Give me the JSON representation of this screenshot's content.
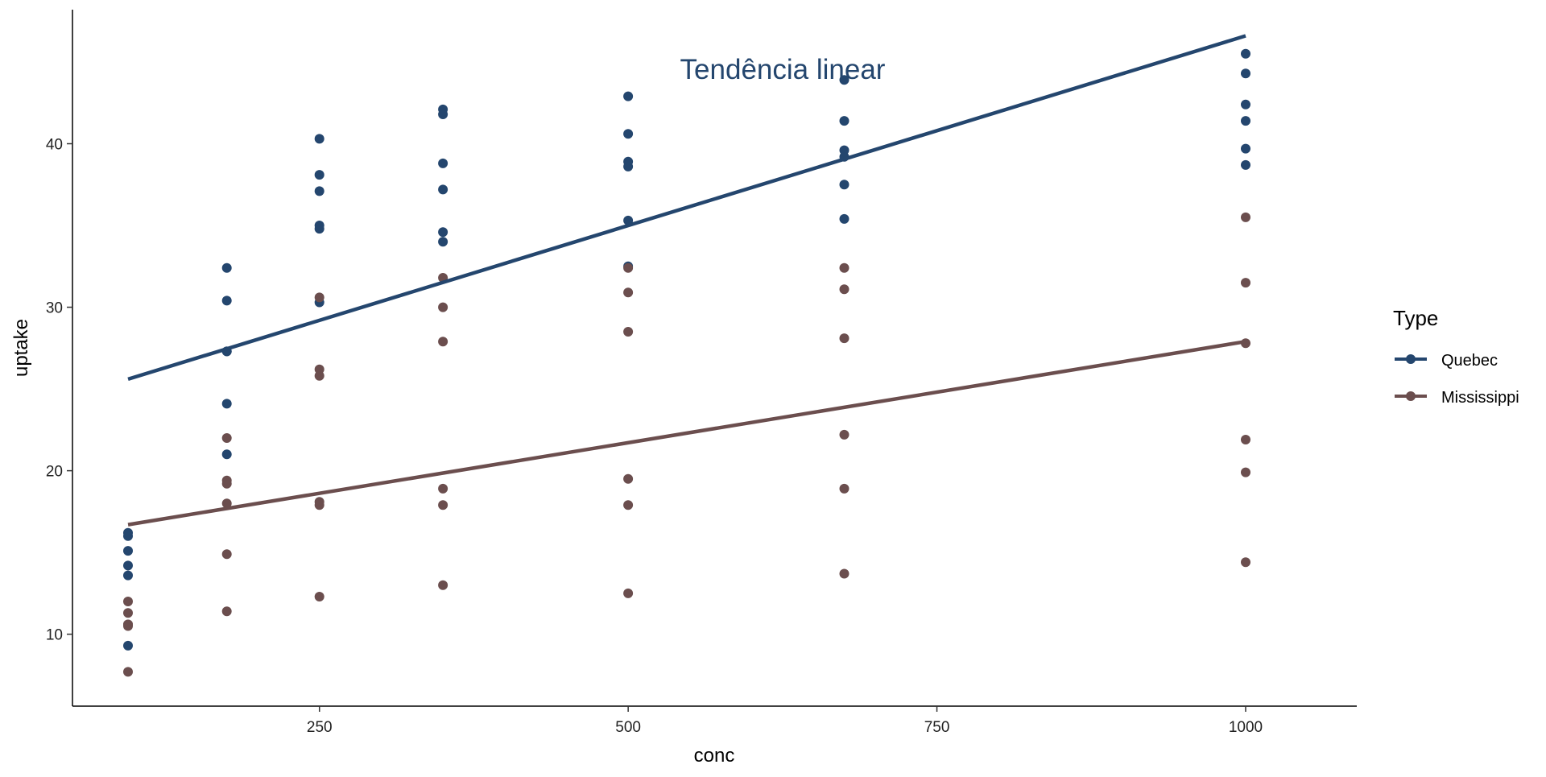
{
  "chart_data": {
    "type": "scatter",
    "annotation": "Tendência linear",
    "xlabel": "conc",
    "ylabel": "uptake",
    "xlim": [
      50,
      1090
    ],
    "ylim": [
      5.6,
      48.2
    ],
    "x_ticks": [
      250,
      500,
      750,
      1000
    ],
    "y_ticks": [
      10,
      20,
      30,
      40
    ],
    "grid": false,
    "legend": {
      "title": "Type",
      "position": "right"
    },
    "colors": {
      "Quebec": "#24466e",
      "Mississippi": "#6b4e4e"
    },
    "series": [
      {
        "name": "Quebec",
        "points": [
          [
            95,
            16.0
          ],
          [
            95,
            13.6
          ],
          [
            95,
            16.2
          ],
          [
            95,
            14.2
          ],
          [
            95,
            9.3
          ],
          [
            95,
            15.1
          ],
          [
            175,
            30.4
          ],
          [
            175,
            27.3
          ],
          [
            175,
            32.4
          ],
          [
            175,
            24.1
          ],
          [
            175,
            27.3
          ],
          [
            175,
            21.0
          ],
          [
            250,
            34.8
          ],
          [
            250,
            37.1
          ],
          [
            250,
            40.3
          ],
          [
            250,
            30.3
          ],
          [
            250,
            35.0
          ],
          [
            250,
            38.1
          ],
          [
            350,
            37.2
          ],
          [
            350,
            41.8
          ],
          [
            350,
            42.1
          ],
          [
            350,
            34.6
          ],
          [
            350,
            38.8
          ],
          [
            350,
            34.0
          ],
          [
            500,
            35.3
          ],
          [
            500,
            40.6
          ],
          [
            500,
            42.9
          ],
          [
            500,
            32.5
          ],
          [
            500,
            38.9
          ],
          [
            500,
            38.6
          ],
          [
            675,
            39.2
          ],
          [
            675,
            41.4
          ],
          [
            675,
            43.9
          ],
          [
            675,
            35.4
          ],
          [
            675,
            39.6
          ],
          [
            675,
            37.5
          ],
          [
            1000,
            39.7
          ],
          [
            1000,
            44.3
          ],
          [
            1000,
            45.5
          ],
          [
            1000,
            38.7
          ],
          [
            1000,
            41.4
          ],
          [
            1000,
            42.4
          ]
        ],
        "trend": {
          "x": [
            95,
            1000
          ],
          "y": [
            25.6,
            46.6
          ]
        }
      },
      {
        "name": "Mississippi",
        "points": [
          [
            95,
            10.6
          ],
          [
            95,
            12.0
          ],
          [
            95,
            11.3
          ],
          [
            95,
            10.5
          ],
          [
            95,
            7.7
          ],
          [
            95,
            10.6
          ],
          [
            175,
            19.2
          ],
          [
            175,
            22.0
          ],
          [
            175,
            19.4
          ],
          [
            175,
            14.9
          ],
          [
            175,
            11.4
          ],
          [
            175,
            18.0
          ],
          [
            250,
            26.2
          ],
          [
            250,
            30.6
          ],
          [
            250,
            25.8
          ],
          [
            250,
            18.1
          ],
          [
            250,
            12.3
          ],
          [
            250,
            17.9
          ],
          [
            350,
            30.0
          ],
          [
            350,
            31.8
          ],
          [
            350,
            27.9
          ],
          [
            350,
            18.9
          ],
          [
            350,
            13.0
          ],
          [
            350,
            17.9
          ],
          [
            500,
            30.9
          ],
          [
            500,
            32.4
          ],
          [
            500,
            28.5
          ],
          [
            500,
            19.5
          ],
          [
            500,
            12.5
          ],
          [
            500,
            17.9
          ],
          [
            675,
            32.4
          ],
          [
            675,
            31.1
          ],
          [
            675,
            28.1
          ],
          [
            675,
            22.2
          ],
          [
            675,
            13.7
          ],
          [
            675,
            18.9
          ],
          [
            1000,
            35.5
          ],
          [
            1000,
            31.5
          ],
          [
            1000,
            27.8
          ],
          [
            1000,
            21.9
          ],
          [
            1000,
            14.4
          ],
          [
            1000,
            19.9
          ]
        ],
        "trend": {
          "x": [
            95,
            1000
          ],
          "y": [
            16.7,
            27.9
          ]
        }
      }
    ]
  }
}
